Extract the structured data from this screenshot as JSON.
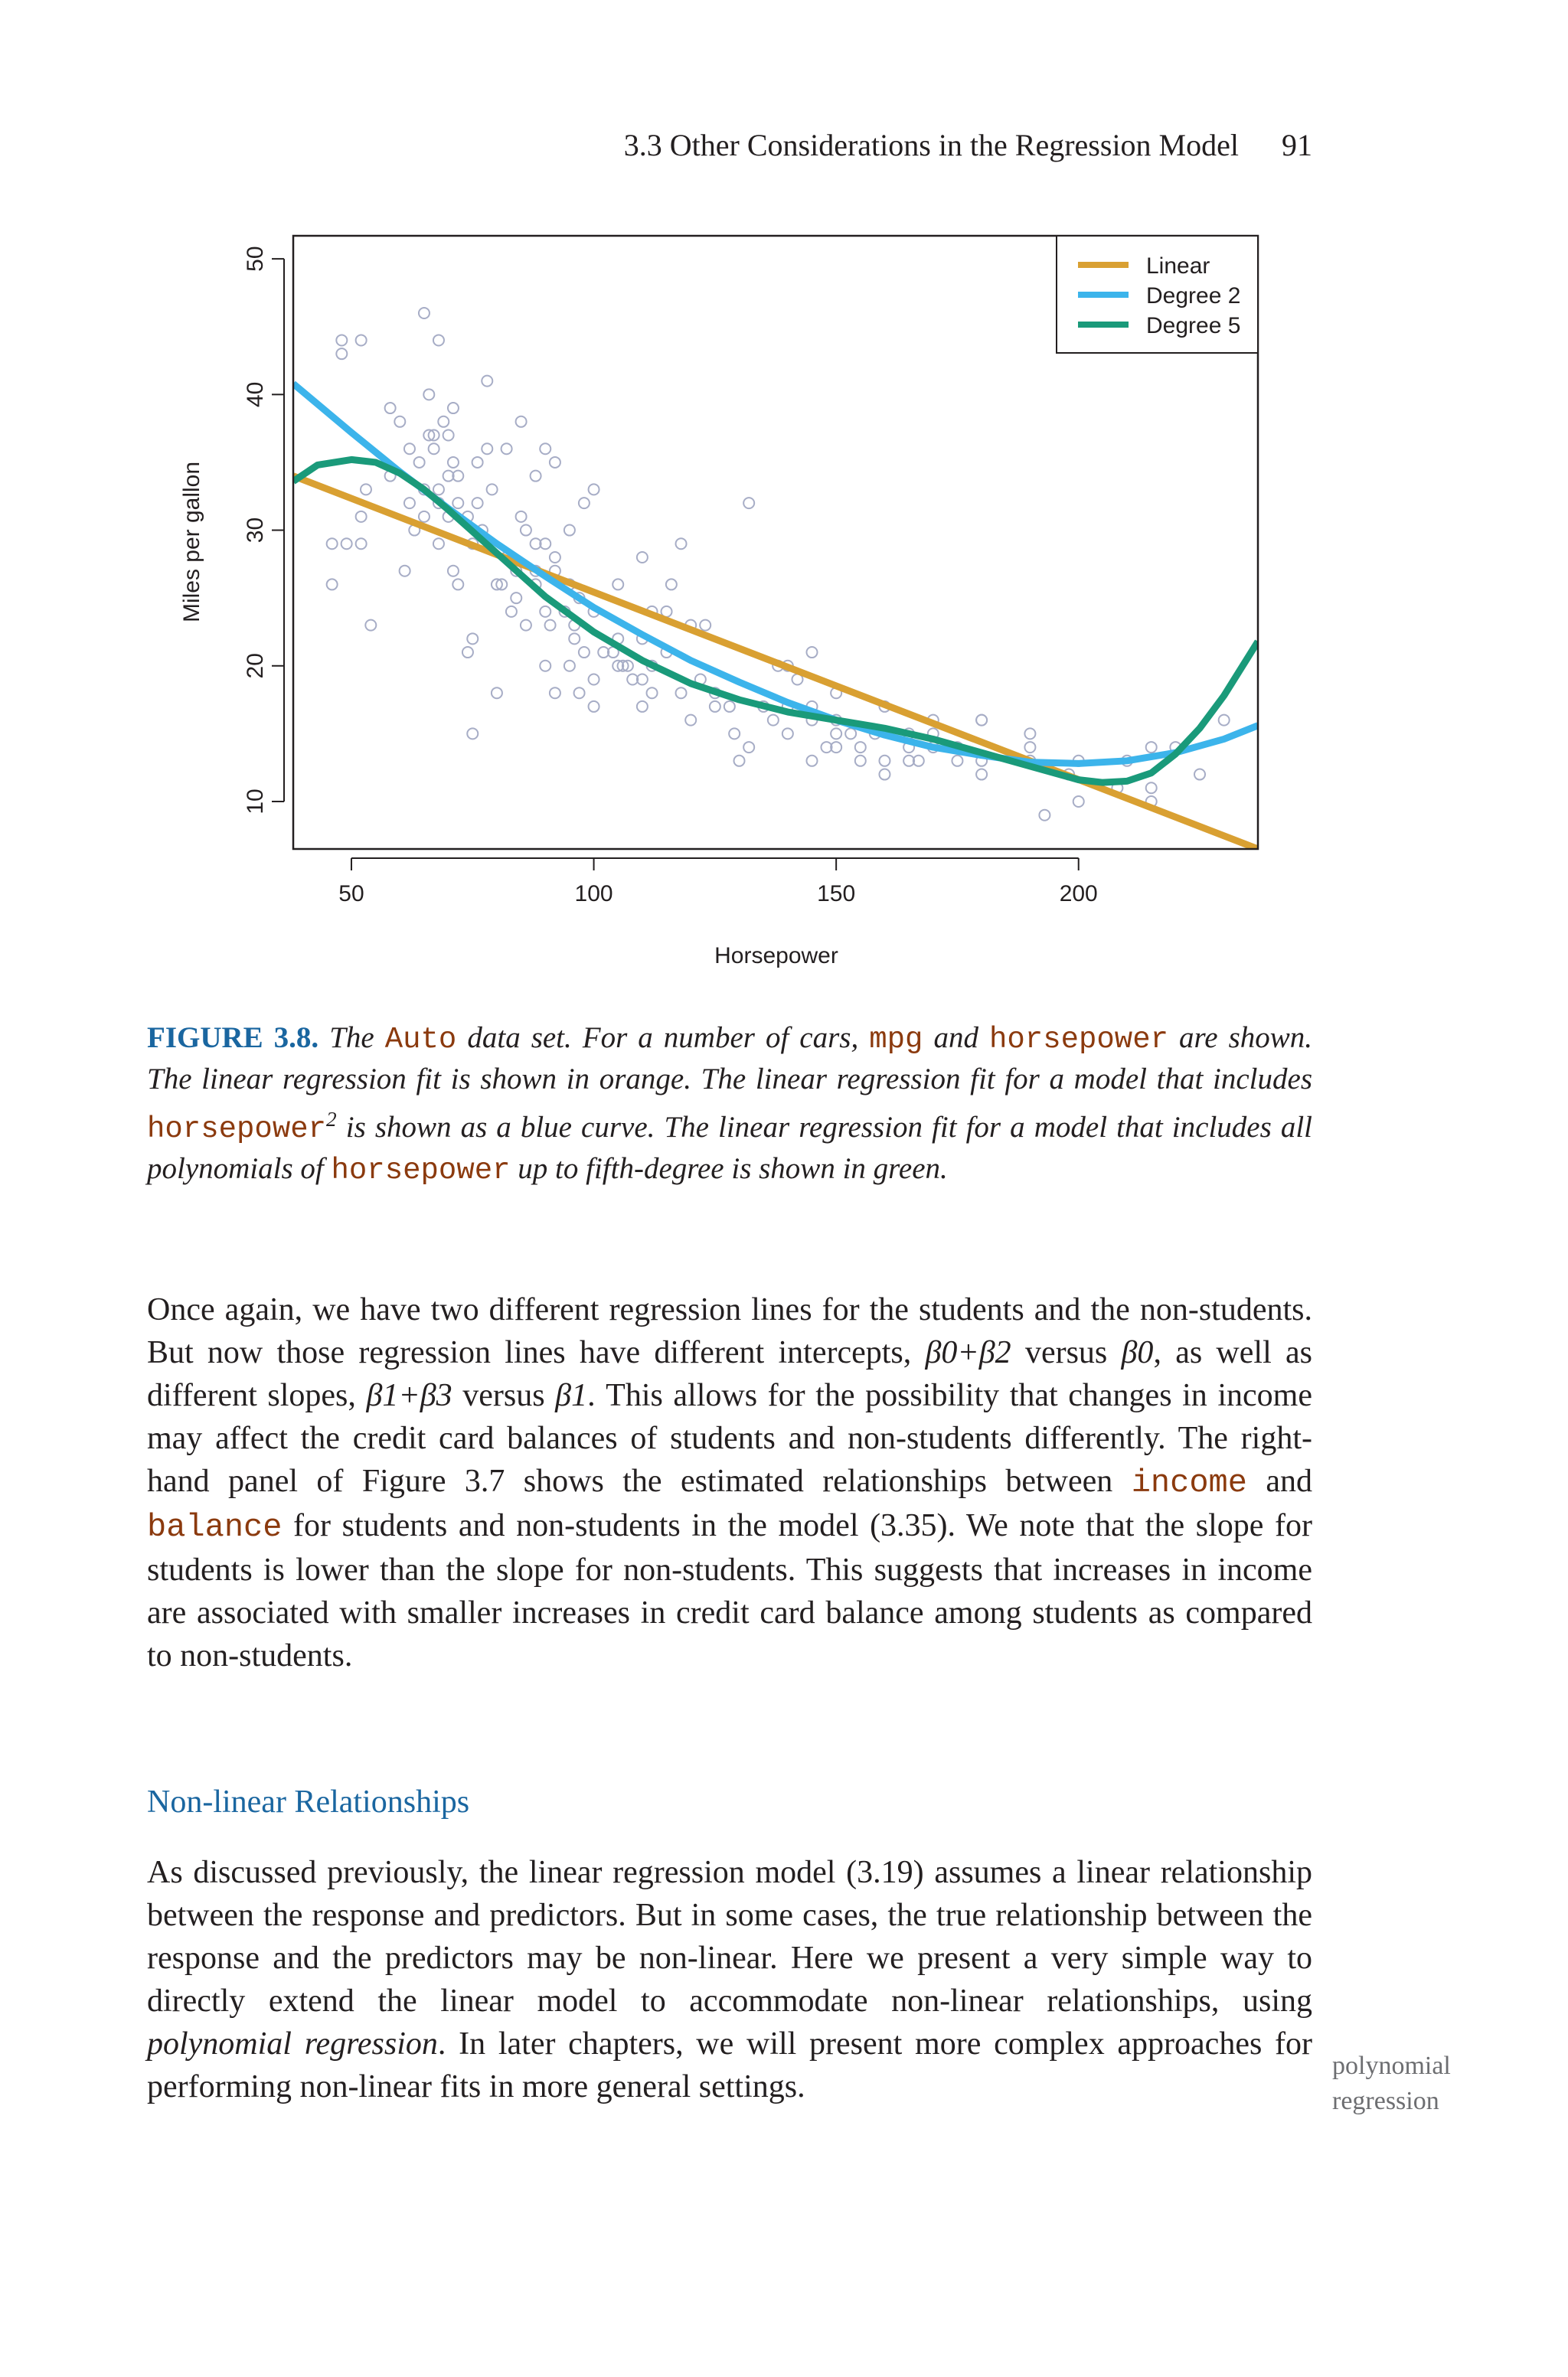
{
  "header": {
    "section": "3.3 Other Considerations in the Regression Model",
    "page_number": "91"
  },
  "chart_data": {
    "type": "scatter",
    "xlabel": "Horsepower",
    "ylabel": "Miles per gallon",
    "xlim": [
      38,
      237
    ],
    "ylim": [
      6.5,
      51.7
    ],
    "xticks": [
      50,
      100,
      150,
      200
    ],
    "yticks": [
      10,
      20,
      30,
      40,
      50
    ],
    "grid": false,
    "legend_position": "top-right",
    "points": [
      [
        46,
        26
      ],
      [
        48,
        43
      ],
      [
        48,
        44
      ],
      [
        49,
        29
      ],
      [
        52,
        44
      ],
      [
        52,
        29
      ],
      [
        53,
        33
      ],
      [
        54,
        23
      ],
      [
        58,
        39
      ],
      [
        60,
        38
      ],
      [
        61,
        27
      ],
      [
        62,
        32
      ],
      [
        63,
        30
      ],
      [
        65,
        31
      ],
      [
        65,
        33
      ],
      [
        66,
        40
      ],
      [
        67,
        37
      ],
      [
        67,
        36
      ],
      [
        68,
        33
      ],
      [
        68,
        29
      ],
      [
        69,
        38
      ],
      [
        70,
        34
      ],
      [
        70,
        31
      ],
      [
        71,
        35
      ],
      [
        71,
        27
      ],
      [
        72,
        26
      ],
      [
        72,
        32
      ],
      [
        74,
        21
      ],
      [
        75,
        22
      ],
      [
        75,
        15
      ],
      [
        76,
        32
      ],
      [
        77,
        30
      ],
      [
        78,
        36
      ],
      [
        79,
        33
      ],
      [
        80,
        18
      ],
      [
        80,
        26
      ],
      [
        81,
        26
      ],
      [
        82,
        36
      ],
      [
        83,
        24
      ],
      [
        84,
        25
      ],
      [
        85,
        31
      ],
      [
        86,
        23
      ],
      [
        88,
        26
      ],
      [
        88,
        29
      ],
      [
        90,
        24
      ],
      [
        90,
        29
      ],
      [
        90,
        20
      ],
      [
        91,
        23
      ],
      [
        92,
        18
      ],
      [
        92,
        28
      ],
      [
        95,
        30
      ],
      [
        95,
        20
      ],
      [
        95,
        26
      ],
      [
        96,
        23
      ],
      [
        97,
        18
      ],
      [
        97,
        25
      ],
      [
        98,
        32
      ],
      [
        100,
        24
      ],
      [
        100,
        19
      ],
      [
        100,
        17
      ],
      [
        105,
        20
      ],
      [
        105,
        22
      ],
      [
        107,
        20
      ],
      [
        110,
        19
      ],
      [
        110,
        17
      ],
      [
        110,
        22
      ],
      [
        112,
        18
      ],
      [
        115,
        24
      ],
      [
        116,
        26
      ],
      [
        120,
        23
      ],
      [
        122,
        19
      ],
      [
        125,
        17
      ],
      [
        129,
        15
      ],
      [
        130,
        13
      ],
      [
        132,
        14
      ],
      [
        137,
        16
      ],
      [
        140,
        20
      ],
      [
        140,
        17
      ],
      [
        145,
        13
      ],
      [
        145,
        17
      ],
      [
        148,
        14
      ],
      [
        150,
        16
      ],
      [
        150,
        14
      ],
      [
        153,
        15
      ],
      [
        155,
        13
      ],
      [
        158,
        15
      ],
      [
        160,
        12
      ],
      [
        165,
        14
      ],
      [
        165,
        15
      ],
      [
        167,
        13
      ],
      [
        170,
        16
      ],
      [
        175,
        14
      ],
      [
        180,
        16
      ],
      [
        180,
        12
      ],
      [
        190,
        13
      ],
      [
        190,
        15
      ],
      [
        193,
        9
      ],
      [
        198,
        12
      ],
      [
        200,
        10
      ],
      [
        208,
        11
      ],
      [
        210,
        13
      ],
      [
        215,
        14
      ],
      [
        215,
        11
      ],
      [
        220,
        14
      ],
      [
        225,
        12
      ],
      [
        230,
        16
      ],
      [
        46,
        29
      ],
      [
        52,
        31
      ],
      [
        65,
        46
      ],
      [
        68,
        44
      ],
      [
        70,
        37
      ],
      [
        71,
        39
      ],
      [
        75,
        29
      ],
      [
        78,
        41
      ],
      [
        85,
        38
      ],
      [
        88,
        34
      ],
      [
        90,
        36
      ],
      [
        92,
        35
      ],
      [
        100,
        33
      ],
      [
        105,
        26
      ],
      [
        110,
        28
      ],
      [
        112,
        24
      ],
      [
        118,
        29
      ],
      [
        123,
        23
      ],
      [
        132,
        32
      ],
      [
        138,
        20
      ],
      [
        142,
        19
      ],
      [
        145,
        21
      ],
      [
        150,
        18
      ],
      [
        160,
        17
      ],
      [
        170,
        15
      ],
      [
        180,
        16
      ],
      [
        190,
        14
      ],
      [
        200,
        13
      ],
      [
        215,
        10
      ],
      [
        58,
        34
      ],
      [
        62,
        36
      ],
      [
        64,
        35
      ],
      [
        66,
        37
      ],
      [
        68,
        32
      ],
      [
        72,
        34
      ],
      [
        74,
        31
      ],
      [
        76,
        35
      ],
      [
        82,
        28
      ],
      [
        84,
        27
      ],
      [
        86,
        30
      ],
      [
        88,
        27
      ],
      [
        92,
        27
      ],
      [
        94,
        24
      ],
      [
        96,
        22
      ],
      [
        98,
        21
      ],
      [
        102,
        21
      ],
      [
        104,
        21
      ],
      [
        106,
        20
      ],
      [
        108,
        19
      ],
      [
        112,
        20
      ],
      [
        115,
        21
      ],
      [
        118,
        18
      ],
      [
        120,
        16
      ],
      [
        125,
        18
      ],
      [
        128,
        17
      ],
      [
        135,
        17
      ],
      [
        140,
        15
      ],
      [
        145,
        16
      ],
      [
        150,
        15
      ],
      [
        155,
        14
      ],
      [
        160,
        13
      ],
      [
        165,
        13
      ],
      [
        170,
        14
      ],
      [
        175,
        13
      ],
      [
        180,
        13
      ]
    ],
    "series": [
      {
        "name": "Linear",
        "color": "#d9a032",
        "x": [
          38,
          237
        ],
        "y": [
          34.0,
          6.5
        ]
      },
      {
        "name": "Degree 2",
        "color": "#3cb4eb",
        "x": [
          38,
          50,
          60,
          70,
          80,
          90,
          100,
          110,
          120,
          130,
          140,
          150,
          160,
          170,
          180,
          190,
          200,
          210,
          220,
          230,
          237
        ],
        "y": [
          40.8,
          37.2,
          34.3,
          31.6,
          29.0,
          26.6,
          24.3,
          22.3,
          20.4,
          18.8,
          17.3,
          16.0,
          14.9,
          14.0,
          13.4,
          12.9,
          12.8,
          13.0,
          13.6,
          14.6,
          15.6
        ]
      },
      {
        "name": "Degree 5",
        "color": "#1a9a7a",
        "x": [
          38,
          43,
          50,
          55,
          60,
          65,
          70,
          80,
          90,
          100,
          110,
          120,
          130,
          140,
          150,
          160,
          170,
          180,
          190,
          200,
          205,
          210,
          215,
          220,
          225,
          230,
          237
        ],
        "y": [
          33.6,
          34.8,
          35.2,
          35.0,
          34.2,
          33.0,
          31.5,
          28.3,
          25.1,
          22.5,
          20.4,
          18.7,
          17.5,
          16.6,
          16.0,
          15.4,
          14.6,
          13.6,
          12.6,
          11.6,
          11.4,
          11.5,
          12.1,
          13.5,
          15.4,
          17.8,
          21.8
        ]
      }
    ]
  },
  "caption": {
    "label": "FIGURE 3.8.",
    "t1": " The ",
    "c1": "Auto",
    "t2": " data set. For a number of cars, ",
    "c2": "mpg",
    "t3": " and ",
    "c3": "horsepower",
    "t4": " are shown. The linear regression fit is shown in orange. The linear regression fit for a model that includes ",
    "c4": "horsepower",
    "sup": "2",
    "t5": " is shown as a blue curve. The linear regression fit for a model that includes all polynomials of ",
    "c5": "horsepower",
    "t6": " up to fifth-degree is shown in green."
  },
  "para1": {
    "a": "Once again, we have two different regression lines for the students and the non-students. But now those regression lines have different intercepts, ",
    "m1": "β0+β2",
    "b": " versus ",
    "m2": "β0",
    "c": ", as well as different slopes, ",
    "m3": "β1+β3",
    "d": " versus ",
    "m4": "β1",
    "e": ". This allows for the possibility that changes in income may affect the credit card balances of students and non-students differently. The right-hand panel of Figure 3.7 shows the estimated relationships between ",
    "code1": "income",
    "f": " and ",
    "code2": "balance",
    "g": " for students and non-students in the model (3.35). We note that the slope for students is lower than the slope for non-students. This suggests that increases in income are associated with smaller increases in credit card balance among students as compared to non-students."
  },
  "section_title": "Non-linear Relationships",
  "para2": {
    "a": "As discussed previously, the linear regression model (3.19) assumes a linear relationship between the response and predictors. But in some cases, the true relationship between the response and the predictors may be non-linear. Here we present a very simple way to directly extend the linear model to accommodate non-linear relationships, using ",
    "em": "polynomial regression",
    "b": ". In later chapters, we will present more complex approaches for performing non-linear fits in more general settings."
  },
  "margin_note": {
    "line1": "polynomial",
    "line2": "regression"
  }
}
